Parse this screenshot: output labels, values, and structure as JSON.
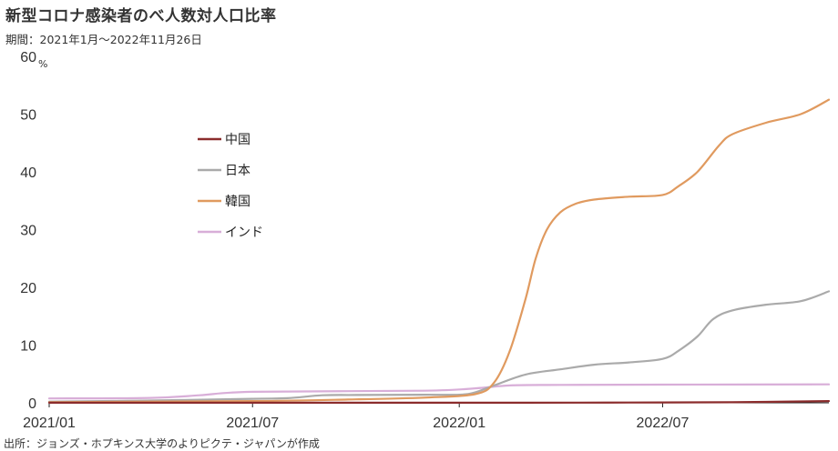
{
  "title": "新型コロナ感染者のべ人数対人口比率",
  "subtitle": "期間：2021年1月～2022年11月26日",
  "source": "出所：ジョンズ・ホプキンス大学のよりピクテ・ジャパンが作成",
  "chart_data": {
    "type": "line",
    "title": "新型コロナ感染者のべ人数対人口比率",
    "ylabel": "",
    "y_unit": "%",
    "ylim": [
      0,
      60
    ],
    "y_ticks": [
      0,
      10,
      20,
      30,
      40,
      50,
      60
    ],
    "y_tick_labels": [
      "0",
      "10",
      "20",
      "30",
      "40",
      "50",
      "60"
    ],
    "xlim": [
      "2021-01-01",
      "2022-11-26"
    ],
    "x_ticks": [
      "2021-01-01",
      "2021-07-01",
      "2022-01-01",
      "2022-07-01"
    ],
    "x_tick_labels": [
      "2021/01",
      "2021/07",
      "2022/01",
      "2022/07"
    ],
    "grid": false,
    "legend_position": "upper-left-inside",
    "series": [
      {
        "name": "中国",
        "color": "#8b2c2c",
        "x": [
          "2021-01-01",
          "2022-03-01",
          "2022-06-01",
          "2022-09-01",
          "2022-11-26"
        ],
        "values": [
          0.01,
          0.02,
          0.05,
          0.1,
          0.3
        ]
      },
      {
        "name": "日本",
        "color": "#aaaaaa",
        "x": [
          "2021-01-01",
          "2021-04-01",
          "2021-07-01",
          "2021-08-01",
          "2021-09-01",
          "2021-10-01",
          "2021-12-01",
          "2022-01-01",
          "2022-01-15",
          "2022-02-01",
          "2022-03-01",
          "2022-04-01",
          "2022-05-01",
          "2022-06-01",
          "2022-07-01",
          "2022-07-15",
          "2022-08-01",
          "2022-08-15",
          "2022-09-01",
          "2022-10-01",
          "2022-11-01",
          "2022-11-26"
        ],
        "values": [
          0.2,
          0.4,
          0.7,
          0.8,
          1.3,
          1.35,
          1.4,
          1.4,
          1.8,
          3.0,
          4.9,
          5.8,
          6.6,
          7.0,
          7.6,
          9.0,
          11.5,
          14.5,
          16.0,
          17.0,
          17.6,
          19.3
        ]
      },
      {
        "name": "韓国",
        "color": "#e09a5f",
        "x": [
          "2021-01-01",
          "2021-07-01",
          "2021-10-01",
          "2021-12-01",
          "2022-01-15",
          "2022-02-01",
          "2022-02-15",
          "2022-03-01",
          "2022-03-10",
          "2022-03-20",
          "2022-04-01",
          "2022-04-15",
          "2022-05-01",
          "2022-06-01",
          "2022-07-01",
          "2022-07-15",
          "2022-08-01",
          "2022-08-20",
          "2022-09-01",
          "2022-10-01",
          "2022-11-01",
          "2022-11-26"
        ],
        "values": [
          0.1,
          0.3,
          0.6,
          0.9,
          1.5,
          3.5,
          9.0,
          18.0,
          25.0,
          30.0,
          33.0,
          34.5,
          35.2,
          35.7,
          36.0,
          37.5,
          40.0,
          44.5,
          46.5,
          48.5,
          50.0,
          52.5
        ]
      },
      {
        "name": "インド",
        "color": "#d8aed8",
        "x": [
          "2021-01-01",
          "2021-04-01",
          "2021-05-15",
          "2021-07-01",
          "2021-12-01",
          "2022-01-15",
          "2022-02-15",
          "2022-04-01",
          "2022-07-01",
          "2022-11-26"
        ],
        "values": [
          0.75,
          0.85,
          1.3,
          1.9,
          2.1,
          2.5,
          3.0,
          3.1,
          3.15,
          3.2
        ]
      }
    ]
  }
}
